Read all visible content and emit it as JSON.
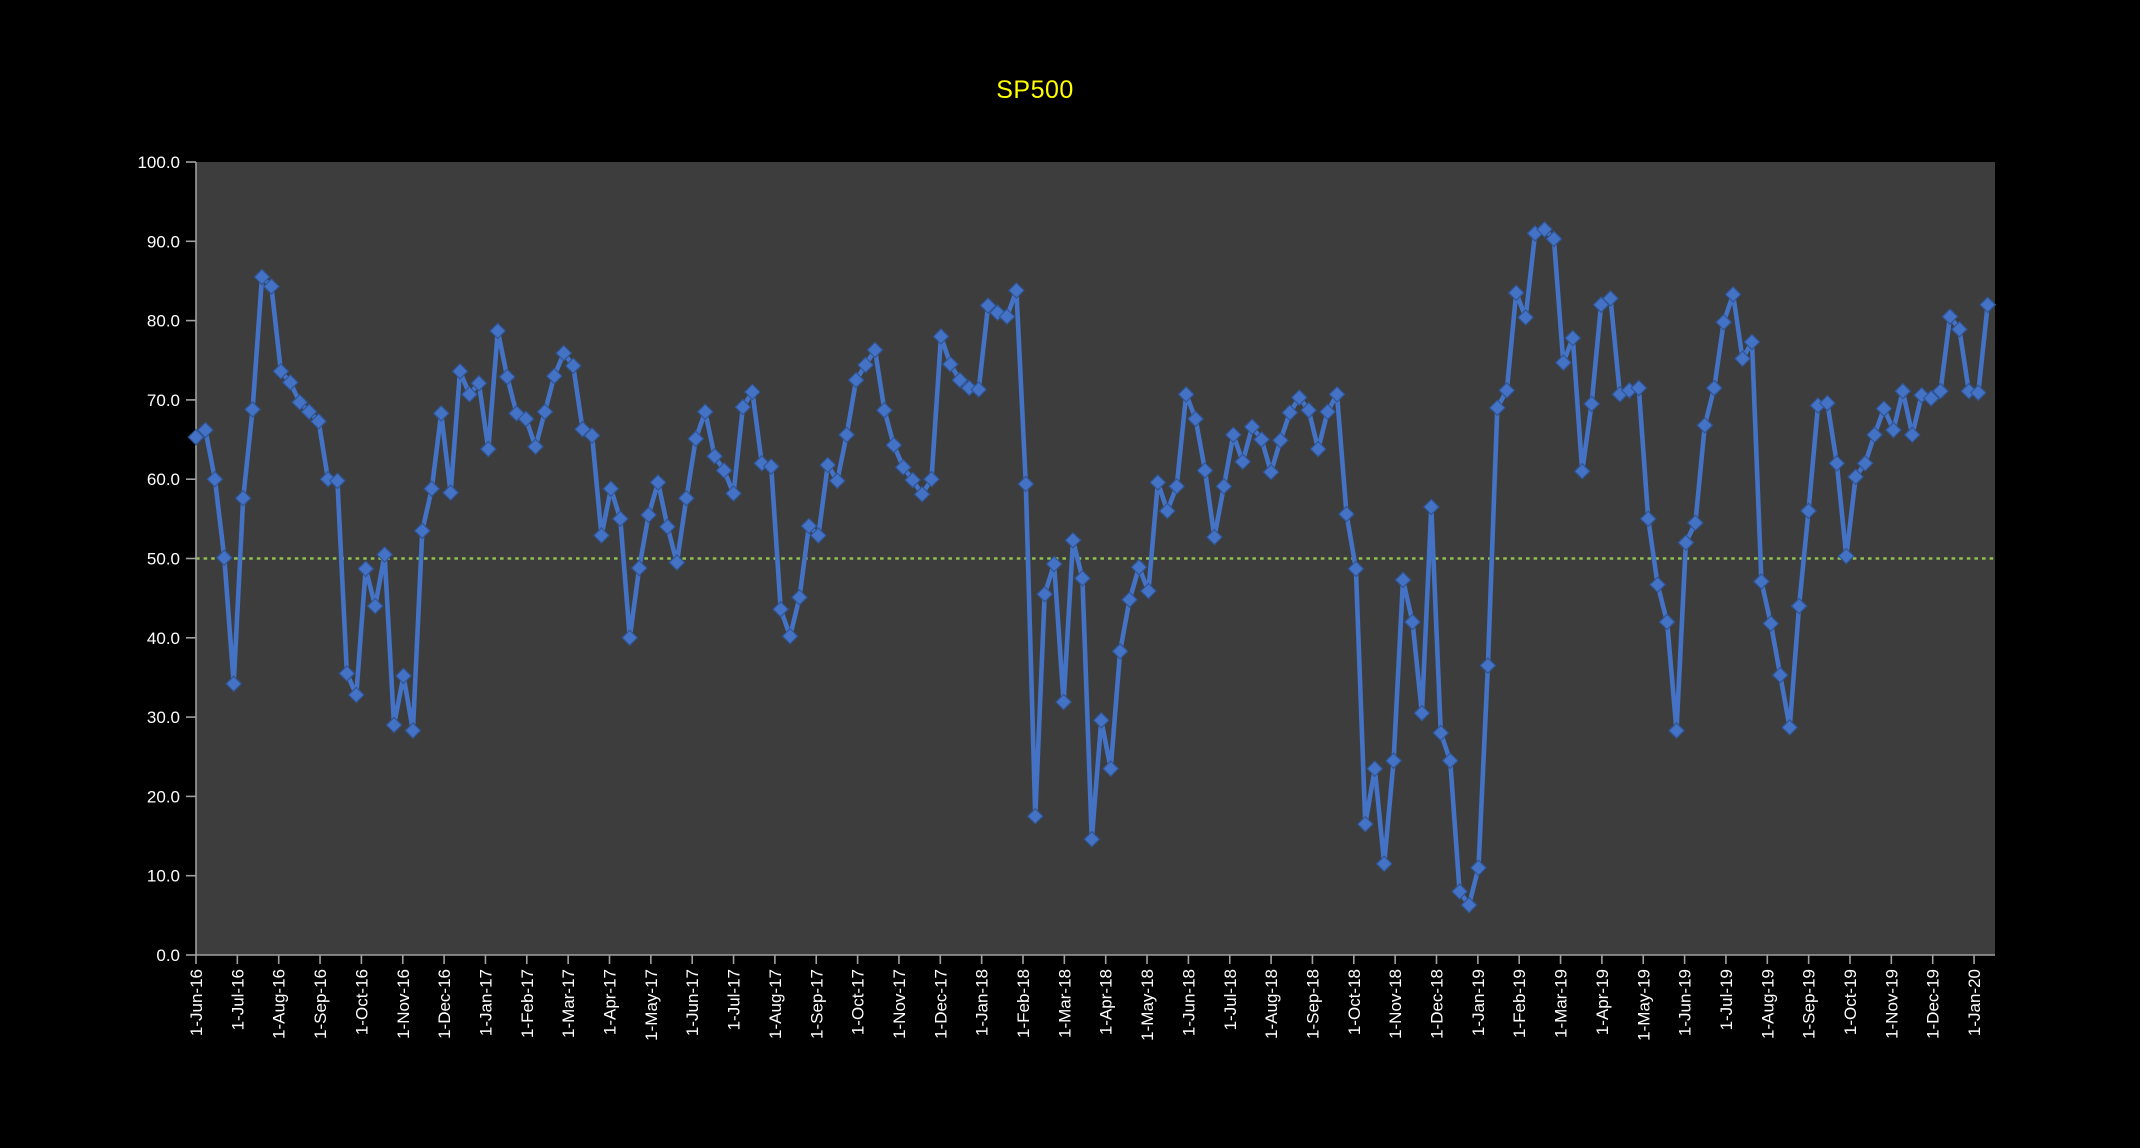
{
  "chart_data": {
    "type": "line",
    "title": "SP500",
    "title_color": "#FFFF00",
    "page_bg": "#000000",
    "plot_bg": "#3D3D3D",
    "axis_color": "#A0A0A0",
    "text_color": "#FFFFFF",
    "grid": false,
    "legend": false,
    "ylim": [
      0,
      100
    ],
    "y_tick_labels": [
      "0.0",
      "10.0",
      "20.0",
      "30.0",
      "40.0",
      "50.0",
      "60.0",
      "70.0",
      "80.0",
      "90.0",
      "100.0"
    ],
    "x_tick_labels": [
      "1-Jun-16",
      "1-Jul-16",
      "1-Aug-16",
      "1-Sep-16",
      "1-Oct-16",
      "1-Nov-16",
      "1-Dec-16",
      "1-Jan-17",
      "1-Feb-17",
      "1-Mar-17",
      "1-Apr-17",
      "1-May-17",
      "1-Jun-17",
      "1-Jul-17",
      "1-Aug-17",
      "1-Sep-17",
      "1-Oct-17",
      "1-Nov-17",
      "1-Dec-17",
      "1-Jan-18",
      "1-Feb-18",
      "1-Mar-18",
      "1-Apr-18",
      "1-May-18",
      "1-Jun-18",
      "1-Jul-18",
      "1-Aug-18",
      "1-Sep-18",
      "1-Oct-18",
      "1-Nov-18",
      "1-Dec-18",
      "1-Jan-19",
      "1-Feb-19",
      "1-Mar-19",
      "1-Apr-19",
      "1-May-19",
      "1-Jun-19",
      "1-Jul-19",
      "1-Aug-19",
      "1-Sep-19",
      "1-Oct-19",
      "1-Nov-19",
      "1-Dec-19",
      "1-Jan-20"
    ],
    "frequency": "weekly",
    "points_per_month": 4.345,
    "reference_line": {
      "value": 50,
      "color": "#8FBE52",
      "style": "dotted"
    },
    "series": [
      {
        "name": "SP500",
        "color": "#4472C4",
        "marker": "diamond",
        "marker_outline": "#2F5597",
        "values": [
          65.3,
          66.2,
          60.0,
          50.1,
          34.2,
          57.6,
          68.8,
          85.5,
          84.3,
          73.6,
          72.2,
          69.7,
          68.5,
          67.3,
          60.0,
          59.8,
          35.5,
          32.8,
          48.7,
          44.0,
          50.5,
          29.0,
          35.2,
          28.3,
          53.5,
          58.8,
          68.3,
          58.3,
          73.6,
          70.7,
          72.1,
          63.8,
          78.7,
          72.9,
          68.3,
          67.6,
          64.1,
          68.5,
          73.0,
          75.9,
          74.3,
          66.3,
          65.5,
          52.9,
          58.8,
          55.0,
          40.0,
          48.8,
          55.5,
          59.6,
          54.0,
          49.5,
          57.6,
          65.1,
          68.5,
          62.9,
          61.1,
          58.2,
          69.1,
          71.0,
          62.0,
          61.6,
          43.6,
          40.2,
          45.1,
          54.1,
          52.9,
          61.8,
          59.8,
          65.6,
          72.5,
          74.4,
          76.3,
          68.7,
          64.3,
          61.5,
          59.9,
          58.1,
          60.0,
          78.0,
          74.5,
          72.5,
          71.5,
          71.3,
          81.9,
          81.0,
          80.5,
          83.8,
          59.4,
          17.5,
          45.5,
          49.3,
          31.9,
          52.3,
          47.5,
          14.6,
          29.6,
          23.5,
          38.3,
          44.8,
          48.9,
          45.9,
          59.6,
          56.0,
          59.1,
          70.7,
          67.6,
          61.1,
          52.7,
          59.1,
          65.6,
          62.2,
          66.6,
          65.0,
          60.9,
          64.9,
          68.4,
          70.3,
          68.7,
          63.8,
          68.5,
          70.7,
          55.6,
          48.7,
          16.5,
          23.5,
          11.5,
          24.5,
          47.3,
          42.0,
          30.5,
          56.5,
          28.0,
          24.5,
          8.0,
          6.3,
          11.0,
          36.5,
          69.0,
          71.2,
          83.5,
          80.4,
          91.0,
          91.5,
          90.3,
          74.7,
          77.8,
          61.0,
          69.5,
          82.0,
          82.8,
          70.7,
          71.2,
          71.5,
          55.0,
          46.7,
          42.0,
          28.3,
          52.0,
          54.5,
          66.8,
          71.5,
          79.8,
          83.3,
          75.2,
          77.3,
          47.1,
          41.8,
          35.3,
          28.7,
          44.0,
          56.0,
          69.3,
          69.6,
          62.0,
          50.3,
          60.3,
          62.0,
          65.6,
          68.9,
          66.2,
          71.1,
          65.6,
          70.6,
          70.2,
          71.1,
          80.5,
          78.9,
          71.1,
          70.9,
          82.0
        ]
      }
    ]
  }
}
